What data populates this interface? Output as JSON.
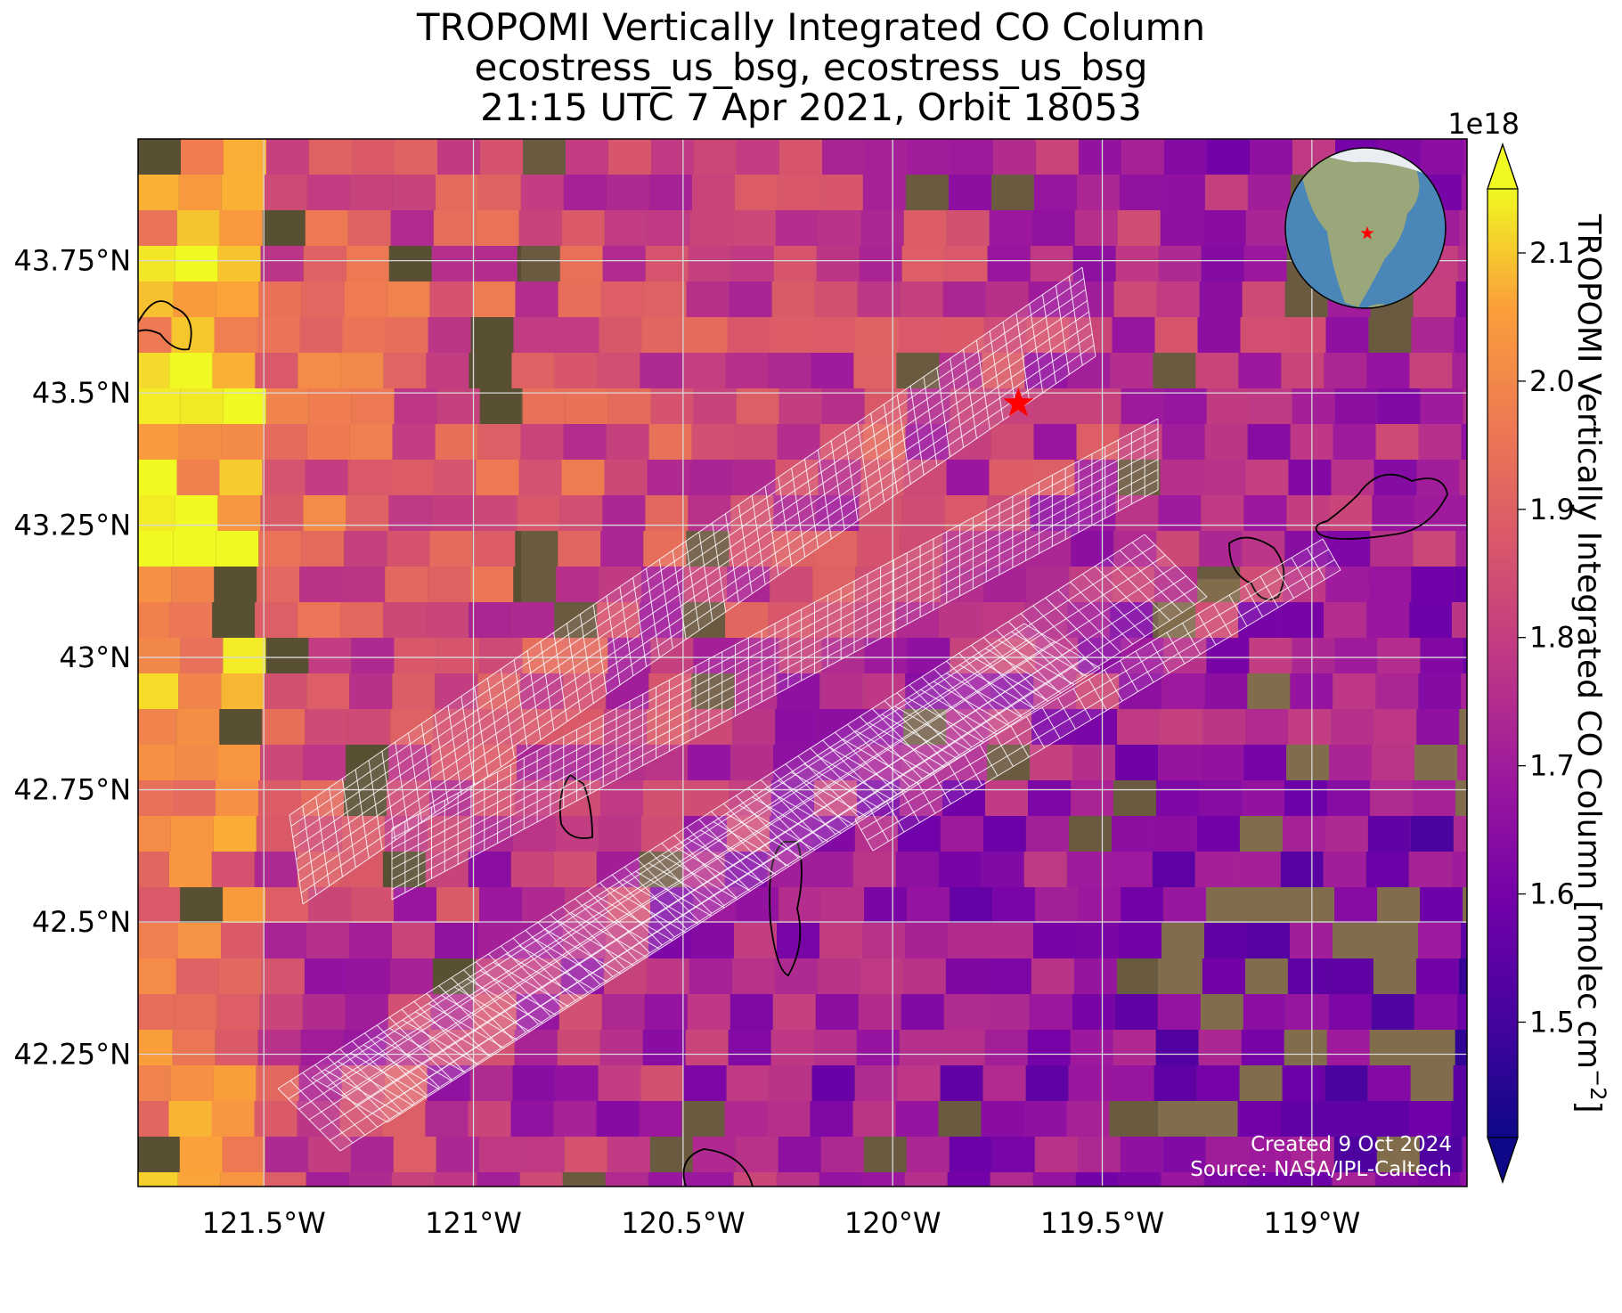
{
  "title": {
    "line1": "TROPOMI Vertically Integrated CO Column",
    "line2": "ecostress_us_bsg, ecostress_us_bsg",
    "line3": "21:15 UTC 7 Apr 2021, Orbit 18053"
  },
  "map": {
    "lon_range": [
      -121.8,
      -118.63
    ],
    "lat_range": [
      42.0,
      43.98
    ],
    "x_ticks": [
      "121.5°W",
      "121°W",
      "120.5°W",
      "120°W",
      "119.5°W",
      "119°W"
    ],
    "y_ticks": [
      "43.75°N",
      "43.5°N",
      "43.25°N",
      "43°N",
      "42.75°N",
      "42.5°N",
      "42.25°N"
    ],
    "site_marker": {
      "lon": -119.7,
      "lat": 43.48,
      "symbol": "star",
      "color": "#ff0000"
    },
    "grid": true,
    "inset_globe": true,
    "credit_line1": "Created 9 Oct 2024",
    "credit_line2": "Source: NASA/JPL-Caltech"
  },
  "colorbar": {
    "label": "TROPOMI Vertically Integrated CO Column [molec cm",
    "label_sup": "−2",
    "label_close": "]",
    "multiplier": "1e18",
    "range": [
      1.41,
      2.15
    ],
    "ticks": [
      "1.5",
      "1.6",
      "1.7",
      "1.8",
      "1.9",
      "2.0",
      "2.1"
    ],
    "colormap": "plasma",
    "extend": "both"
  }
}
